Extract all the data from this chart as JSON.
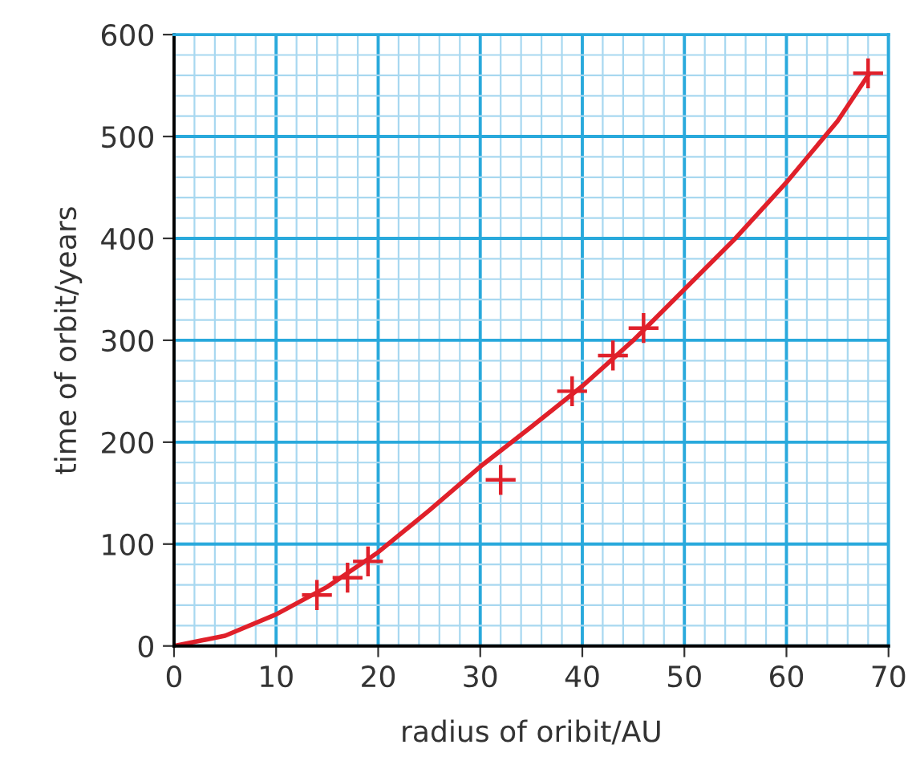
{
  "chart_data": {
    "type": "scatter",
    "xlabel": "radius of oribit/AU",
    "ylabel": "time of orbit/years",
    "xlim": [
      0,
      70
    ],
    "ylim": [
      0,
      600
    ],
    "xticks": [
      0,
      {
        "value": 2,
        "label": null
      },
      {
        "value": 4,
        "label": null
      },
      {
        "value": 6,
        "label": null
      },
      {
        "value": 8,
        "label": null
      },
      10,
      {
        "value": 12,
        "label": null
      },
      {
        "value": 14,
        "label": null
      },
      {
        "value": 16,
        "label": null
      },
      {
        "value": 18,
        "label": null
      },
      20,
      {
        "value": 22,
        "label": null
      },
      {
        "value": 24,
        "label": null
      },
      {
        "value": 26,
        "label": null
      },
      {
        "value": 28,
        "label": null
      },
      30,
      {
        "value": 32,
        "label": null
      },
      {
        "value": 34,
        "label": null
      },
      {
        "value": 36,
        "label": null
      },
      {
        "value": 38,
        "label": null
      },
      40,
      {
        "value": 42,
        "label": null
      },
      {
        "value": 44,
        "label": null
      },
      {
        "value": 46,
        "label": null
      },
      {
        "value": 48,
        "label": null
      },
      50,
      {
        "value": 52,
        "label": null
      },
      {
        "value": 54,
        "label": null
      },
      {
        "value": 56,
        "label": null
      },
      {
        "value": 58,
        "label": null
      },
      60,
      {
        "value": 62,
        "label": null
      },
      {
        "value": 64,
        "label": null
      },
      {
        "value": 66,
        "label": null
      },
      {
        "value": 68,
        "label": null
      },
      70
    ],
    "yticks": [
      0,
      {
        "value": 20,
        "label": null
      },
      {
        "value": 40,
        "label": null
      },
      {
        "value": 60,
        "label": null
      },
      {
        "value": 80,
        "label": null
      },
      100,
      {
        "value": 120,
        "label": null
      },
      {
        "value": 140,
        "label": null
      },
      {
        "value": 160,
        "label": null
      },
      {
        "value": 180,
        "label": null
      },
      200,
      {
        "value": 220,
        "label": null
      },
      {
        "value": 240,
        "label": null
      },
      {
        "value": 260,
        "label": null
      },
      {
        "value": 280,
        "label": null
      },
      300,
      {
        "value": 320,
        "label": null
      },
      {
        "value": 340,
        "label": null
      },
      {
        "value": 360,
        "label": null
      },
      {
        "value": 380,
        "label": null
      },
      400,
      {
        "value": 420,
        "label": null
      },
      {
        "value": 440,
        "label": null
      },
      {
        "value": 460,
        "label": null
      },
      {
        "value": 480,
        "label": null
      },
      500,
      {
        "value": 520,
        "label": null
      },
      {
        "value": 540,
        "label": null
      },
      {
        "value": 560,
        "label": null
      },
      {
        "value": 580,
        "label": null
      },
      600
    ],
    "grid": true,
    "series": [
      {
        "marker": "cross",
        "color": "#e0202a",
        "x": [
          14,
          17,
          19,
          32,
          39,
          43,
          46,
          68
        ],
        "values": [
          50,
          67,
          83,
          163,
          250,
          285,
          312,
          562
        ]
      },
      {
        "type": "line",
        "color": "#e0202a",
        "x": [
          0,
          5,
          10,
          15,
          20,
          25,
          30,
          35,
          40,
          45,
          50,
          55,
          60,
          65,
          68
        ],
        "values": [
          0,
          10,
          31,
          58,
          92,
          133,
          176,
          215,
          255,
          300,
          350,
          400,
          455,
          515,
          560
        ]
      }
    ]
  }
}
